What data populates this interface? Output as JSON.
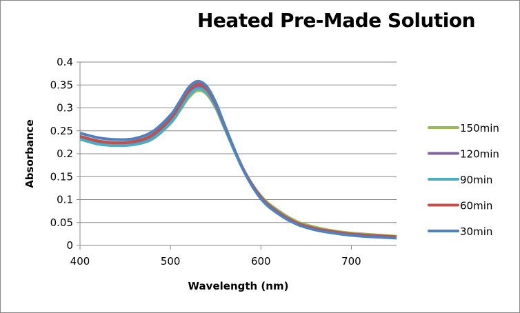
{
  "chart_data": {
    "type": "line",
    "title": "Heated Pre-Made Solution",
    "xlabel": "Wavelength (nm)",
    "ylabel": "Absorbance",
    "xlim": [
      400,
      750
    ],
    "ylim": [
      0,
      0.4
    ],
    "xticks": [
      400,
      500,
      600,
      700
    ],
    "yticks": [
      0,
      0.05,
      0.1,
      0.15,
      0.2,
      0.25,
      0.3,
      0.35,
      0.4
    ],
    "ytick_labels": [
      "0",
      "0.05",
      "0.1",
      "0.15",
      "0.2",
      "0.25",
      "0.3",
      "0.35",
      "0.4"
    ],
    "grid": "horizontal",
    "legend": "right",
    "x": [
      400,
      420,
      440,
      460,
      480,
      500,
      510,
      520,
      530,
      540,
      550,
      560,
      580,
      600,
      620,
      640,
      660,
      680,
      700,
      720,
      750
    ],
    "series": [
      {
        "name": "150min",
        "color": "#9BBB59",
        "values": [
          0.232,
          0.221,
          0.218,
          0.22,
          0.232,
          0.266,
          0.293,
          0.322,
          0.338,
          0.33,
          0.3,
          0.255,
          0.168,
          0.108,
          0.075,
          0.052,
          0.04,
          0.032,
          0.027,
          0.024,
          0.02
        ]
      },
      {
        "name": "120min",
        "color": "#8064A2",
        "values": [
          0.236,
          0.225,
          0.222,
          0.224,
          0.237,
          0.271,
          0.299,
          0.33,
          0.346,
          0.337,
          0.305,
          0.258,
          0.168,
          0.106,
          0.072,
          0.049,
          0.037,
          0.03,
          0.025,
          0.022,
          0.018
        ]
      },
      {
        "name": "90min",
        "color": "#4BACC6",
        "values": [
          0.232,
          0.221,
          0.218,
          0.22,
          0.233,
          0.267,
          0.295,
          0.326,
          0.342,
          0.333,
          0.302,
          0.256,
          0.167,
          0.105,
          0.072,
          0.049,
          0.037,
          0.03,
          0.025,
          0.022,
          0.018
        ]
      },
      {
        "name": "60min",
        "color": "#C0504D",
        "values": [
          0.238,
          0.228,
          0.224,
          0.227,
          0.241,
          0.276,
          0.305,
          0.336,
          0.352,
          0.341,
          0.308,
          0.26,
          0.169,
          0.105,
          0.071,
          0.049,
          0.037,
          0.03,
          0.025,
          0.022,
          0.019
        ]
      },
      {
        "name": "30min",
        "color": "#4F81BD",
        "values": [
          0.245,
          0.235,
          0.231,
          0.233,
          0.248,
          0.284,
          0.313,
          0.344,
          0.358,
          0.347,
          0.312,
          0.262,
          0.167,
          0.102,
          0.068,
          0.046,
          0.034,
          0.027,
          0.022,
          0.019,
          0.016
        ]
      }
    ]
  }
}
